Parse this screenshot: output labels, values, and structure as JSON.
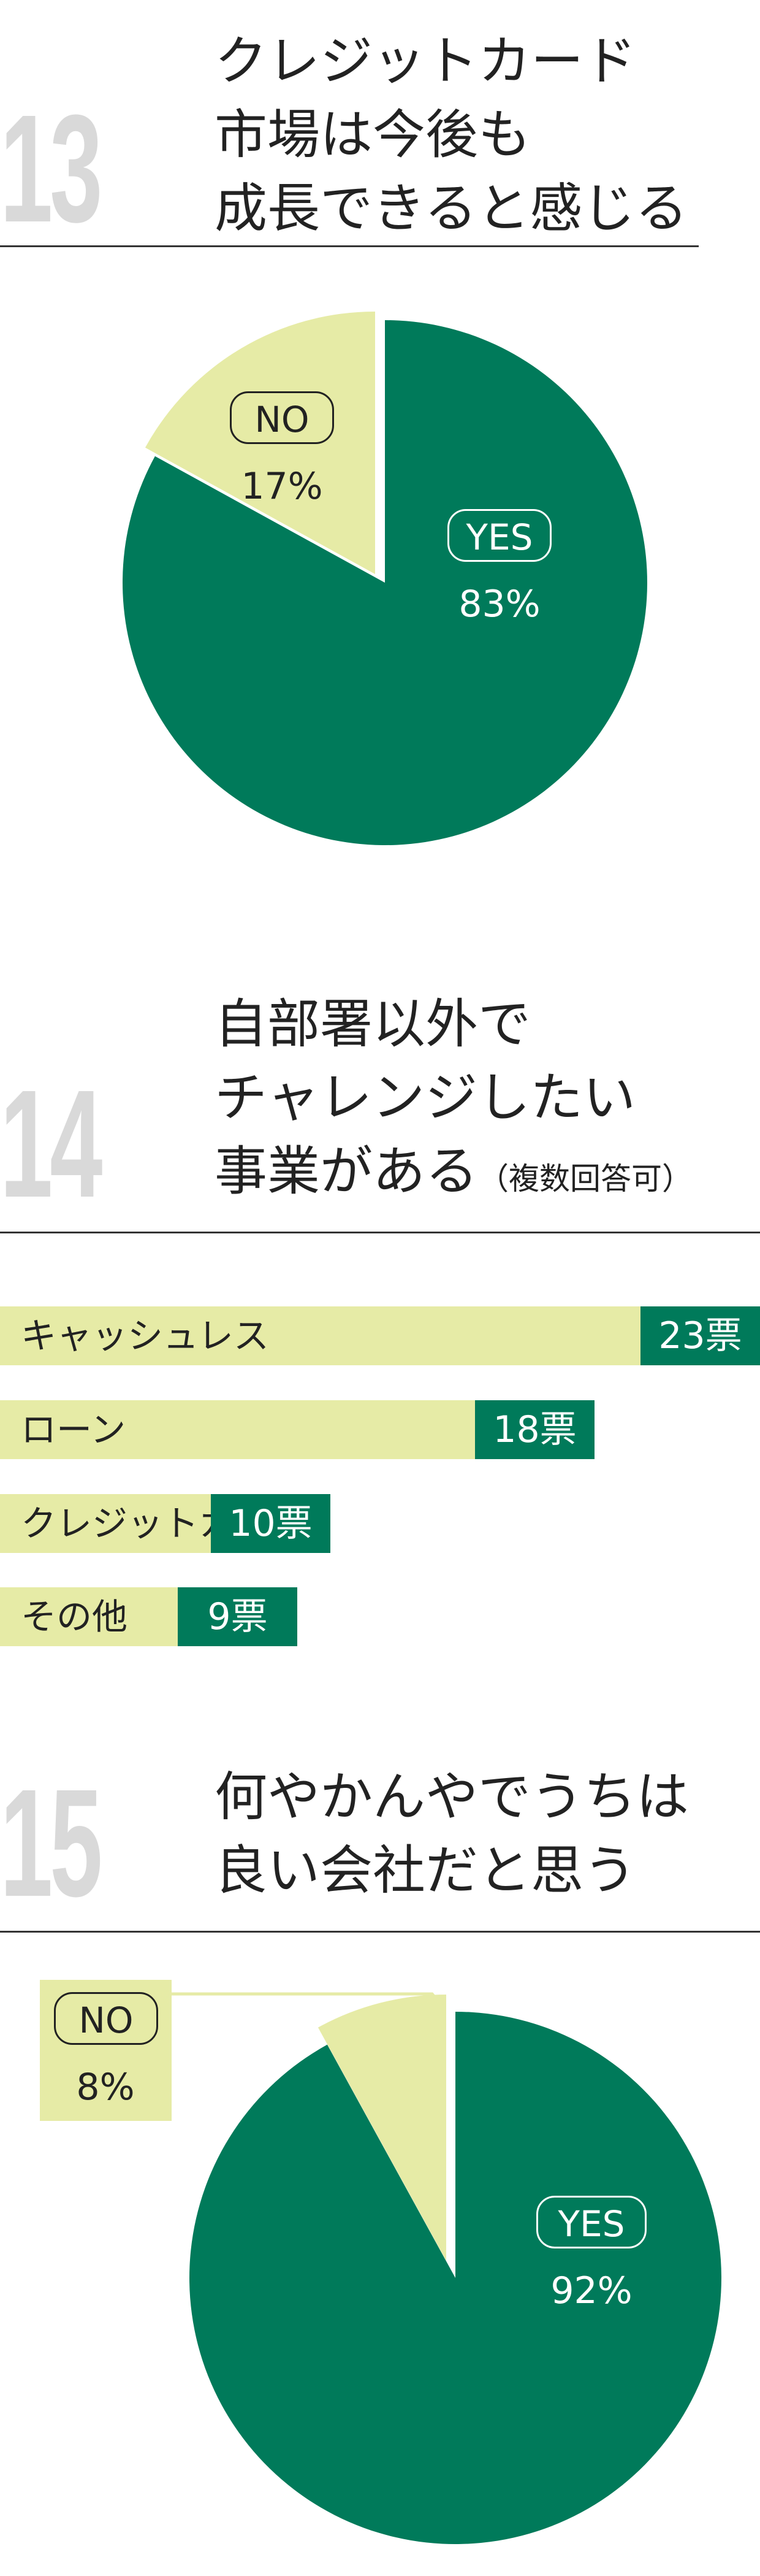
{
  "colors": {
    "green": "#007a5a",
    "pale": "#e6eba6",
    "number_gray": "#d9d9d9"
  },
  "sections": [
    {
      "number": "13",
      "title_lines": [
        "クレジットカード",
        "市場は今後も",
        "成長できると感じる"
      ]
    },
    {
      "number": "14",
      "title_lines": [
        "自部署以外で",
        "チャレンジしたい",
        "事業がある"
      ],
      "title_note": "（複数回答可）"
    },
    {
      "number": "15",
      "title_lines": [
        "何やかんやでうちは",
        "良い会社だと思う"
      ]
    }
  ],
  "chart_data": [
    {
      "type": "pie",
      "slices": [
        {
          "label": "YES",
          "value": 83,
          "display": "83%"
        },
        {
          "label": "NO",
          "value": 17,
          "display": "17%"
        }
      ]
    },
    {
      "type": "bar",
      "orientation": "horizontal",
      "unit": "票",
      "categories": [
        "キャッシュレス",
        "ローン",
        "クレジットカード",
        "その他"
      ],
      "values": [
        23,
        18,
        10,
        9
      ],
      "value_labels": [
        "23票",
        "18票",
        "10票",
        "9票"
      ]
    },
    {
      "type": "pie",
      "slices": [
        {
          "label": "YES",
          "value": 92,
          "display": "92%"
        },
        {
          "label": "NO",
          "value": 8,
          "display": "8%"
        }
      ]
    }
  ]
}
